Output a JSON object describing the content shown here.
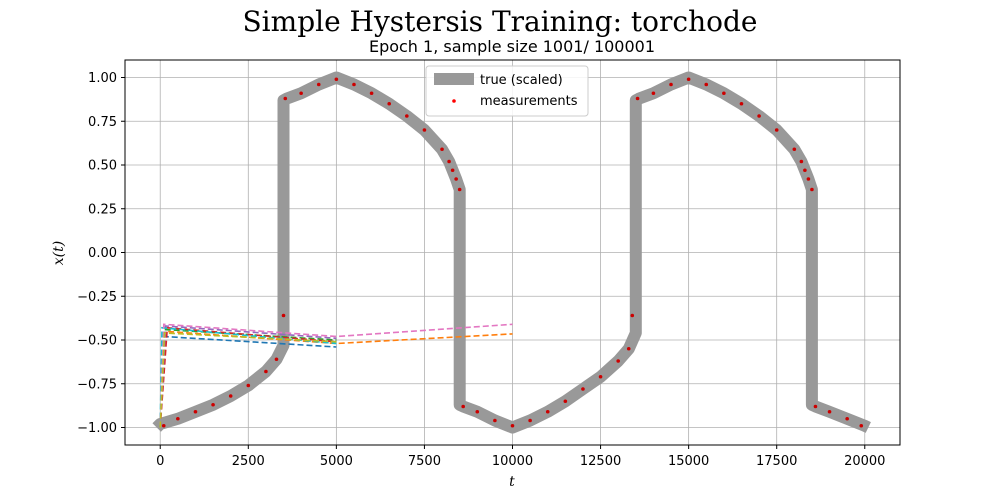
{
  "chart_data": {
    "type": "line",
    "title": "Simple Hystersis Training: torchode",
    "subtitle": "Epoch 1, sample size 1001/ 100001",
    "xlabel": "t",
    "ylabel": "x(t)",
    "xlim": [
      -1000,
      21000
    ],
    "ylim": [
      -1.1,
      1.1
    ],
    "xticks": [
      0,
      2500,
      5000,
      7500,
      10000,
      12500,
      15000,
      17500,
      20000
    ],
    "xtick_labels": [
      "0",
      "2500",
      "5000",
      "7500",
      "10000",
      "12500",
      "15000",
      "17500",
      "20000"
    ],
    "yticks": [
      -1.0,
      -0.75,
      -0.5,
      -0.25,
      0.0,
      0.25,
      0.5,
      0.75,
      1.0
    ],
    "ytick_labels": [
      "−1.00",
      "−0.75",
      "−0.50",
      "−0.25",
      "0.00",
      "0.25",
      "0.50",
      "0.75",
      "1.00"
    ],
    "grid": true,
    "legend": {
      "location": "upper center",
      "entries": [
        {
          "label": "true (scaled)",
          "color": "#999999",
          "kind": "thick-line"
        },
        {
          "label": "measurements",
          "color": "#ff0000",
          "kind": "scatter"
        }
      ]
    },
    "true_curve": {
      "name": "true (scaled)",
      "color": "#999999",
      "x": [
        -100,
        0,
        500,
        1000,
        1500,
        2000,
        2500,
        3000,
        3300,
        3500,
        3500,
        3600,
        4000,
        4500,
        5000,
        5500,
        6000,
        6500,
        7000,
        7500,
        8000,
        8200,
        8400,
        8500,
        8500,
        8600,
        9000,
        9500,
        10000,
        10500,
        11000,
        11500,
        12000,
        12500,
        13000,
        13300,
        13500,
        13500,
        13600,
        14000,
        14500,
        15000,
        15500,
        16000,
        16500,
        17000,
        17500,
        18000,
        18200,
        18400,
        18500,
        18500,
        18600,
        19000,
        19500,
        20000,
        20100
      ],
      "y": [
        -1.0,
        -0.98,
        -0.95,
        -0.91,
        -0.87,
        -0.82,
        -0.76,
        -0.68,
        -0.61,
        -0.53,
        0.87,
        0.88,
        0.91,
        0.96,
        1.0,
        0.96,
        0.91,
        0.85,
        0.78,
        0.7,
        0.59,
        0.52,
        0.42,
        0.36,
        -0.87,
        -0.88,
        -0.91,
        -0.96,
        -1.0,
        -0.96,
        -0.91,
        -0.85,
        -0.78,
        -0.71,
        -0.62,
        -0.55,
        -0.46,
        0.87,
        0.88,
        0.91,
        0.96,
        1.0,
        0.96,
        0.91,
        0.85,
        0.78,
        0.7,
        0.59,
        0.52,
        0.42,
        0.36,
        -0.87,
        -0.88,
        -0.91,
        -0.95,
        -0.99,
        -1.0
      ]
    },
    "measurements": {
      "name": "measurements",
      "color": "#cc0000",
      "x": [
        100,
        500,
        1000,
        1500,
        2000,
        2500,
        3000,
        3300,
        3500,
        3550,
        4000,
        4500,
        5000,
        5500,
        6000,
        6500,
        7000,
        7500,
        8000,
        8200,
        8300,
        8400,
        8500,
        8600,
        9000,
        9500,
        10000,
        10500,
        11000,
        11500,
        12000,
        12500,
        13000,
        13300,
        13400,
        13550,
        14000,
        14500,
        15000,
        15500,
        16000,
        16500,
        17000,
        17500,
        18000,
        18200,
        18300,
        18400,
        18500,
        18600,
        19000,
        19500,
        19900
      ],
      "y": [
        -0.99,
        -0.95,
        -0.91,
        -0.87,
        -0.82,
        -0.76,
        -0.68,
        -0.61,
        -0.36,
        0.88,
        0.91,
        0.96,
        0.99,
        0.96,
        0.91,
        0.85,
        0.78,
        0.7,
        0.59,
        0.52,
        0.47,
        0.42,
        0.36,
        -0.88,
        -0.91,
        -0.96,
        -0.99,
        -0.96,
        -0.91,
        -0.85,
        -0.78,
        -0.71,
        -0.62,
        -0.55,
        -0.36,
        0.88,
        0.91,
        0.96,
        0.99,
        0.96,
        0.91,
        0.85,
        0.78,
        0.7,
        0.59,
        0.52,
        0.47,
        0.42,
        0.36,
        -0.88,
        -0.91,
        -0.95,
        -0.99
      ]
    },
    "series": [
      {
        "color": "#1f77b4",
        "x": [
          0,
          100,
          5000
        ],
        "y": [
          -1.0,
          -0.48,
          -0.54
        ]
      },
      {
        "color": "#ff7f0e",
        "x": [
          0,
          150,
          5000,
          10000
        ],
        "y": [
          -1.0,
          -0.45,
          -0.52,
          -0.465
        ]
      },
      {
        "color": "#2ca02c",
        "x": [
          0,
          100,
          5000
        ],
        "y": [
          -1.0,
          -0.44,
          -0.5
        ]
      },
      {
        "color": "#d62728",
        "x": [
          0,
          200,
          5000
        ],
        "y": [
          -1.0,
          -0.43,
          -0.51
        ]
      },
      {
        "color": "#9467bd",
        "x": [
          0,
          150,
          5000
        ],
        "y": [
          -1.0,
          -0.42,
          -0.49
        ]
      },
      {
        "color": "#17becf",
        "x": [
          0,
          50,
          5000
        ],
        "y": [
          -1.0,
          -0.43,
          -0.52
        ]
      },
      {
        "color": "#e377c2",
        "x": [
          0,
          100,
          5000,
          10000
        ],
        "y": [
          -1.0,
          -0.41,
          -0.48,
          -0.41
        ]
      },
      {
        "color": "#bcbd22",
        "x": [
          0,
          120,
          5000
        ],
        "y": [
          -1.0,
          -0.46,
          -0.51
        ]
      }
    ]
  }
}
